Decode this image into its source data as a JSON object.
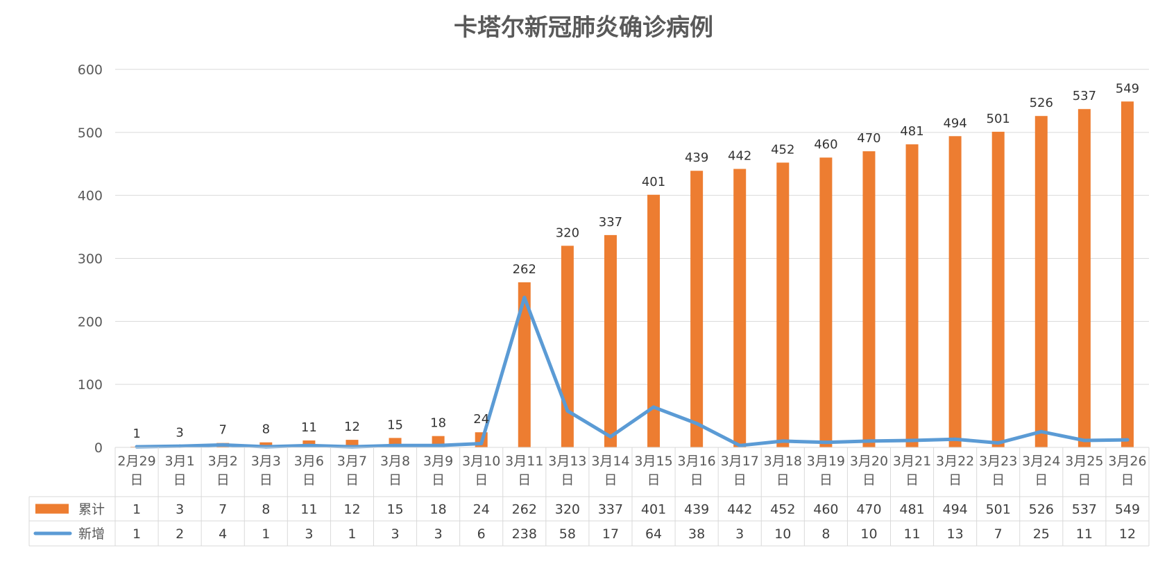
{
  "chart_data": {
    "type": "bar",
    "title": "卡塔尔新冠肺炎确诊病例",
    "categories": [
      "2月29日",
      "3月1日",
      "3月2日",
      "3月3日",
      "3月6日",
      "3月7日",
      "3月8日",
      "3月9日",
      "3月10日",
      "3月11日",
      "3月13日",
      "3月14日",
      "3月15日",
      "3月16日",
      "3月17日",
      "3月18日",
      "3月19日",
      "3月20日",
      "3月21日",
      "3月22日",
      "3月23日",
      "3月24日",
      "3月25日",
      "3月26日"
    ],
    "series": [
      {
        "name": "累计",
        "type": "bar",
        "color": "#ed7d31",
        "values": [
          1,
          3,
          7,
          8,
          11,
          12,
          15,
          18,
          24,
          262,
          320,
          337,
          401,
          439,
          442,
          452,
          460,
          470,
          481,
          494,
          501,
          526,
          537,
          549
        ]
      },
      {
        "name": "新增",
        "type": "line",
        "color": "#5b9bd5",
        "values": [
          1,
          2,
          4,
          1,
          3,
          1,
          3,
          3,
          6,
          238,
          58,
          17,
          64,
          38,
          3,
          10,
          8,
          10,
          11,
          13,
          7,
          25,
          11,
          12
        ]
      }
    ],
    "yticks": [
      0,
      100,
      200,
      300,
      400,
      500,
      600
    ],
    "ylim": [
      0,
      600
    ],
    "grid": true,
    "legend": "data-table"
  }
}
